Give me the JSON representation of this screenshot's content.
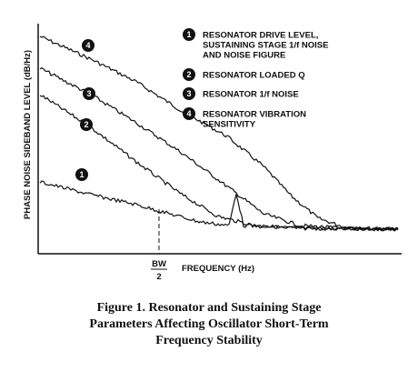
{
  "figure": {
    "y_label": "PHASE NOISE SIDEBAND LEVEL (dB/Hz)",
    "x_label": "FREQUENCY (Hz)",
    "bw_marker": {
      "numerator": "BW",
      "denominator": "2"
    },
    "curve_markers": [
      "4",
      "3",
      "2",
      "1"
    ],
    "legend": [
      {
        "number": "1",
        "lines": [
          "RESONATOR DRIVE LEVEL,",
          "SUSTAINING STAGE 1/f NOISE",
          "AND NOISE FIGURE"
        ]
      },
      {
        "number": "2",
        "lines": [
          "RESONATOR LOADED Q"
        ]
      },
      {
        "number": "3",
        "lines": [
          "RESONATOR 1/f NOISE"
        ]
      },
      {
        "number": "4",
        "lines": [
          "RESONATOR VIBRATION",
          "SENSITIVITY"
        ]
      }
    ],
    "caption": [
      "Figure 1. Resonator and Sustaining Stage",
      "Parameters Affecting Oscillator Short-Term",
      "Frequency Stability"
    ]
  }
}
